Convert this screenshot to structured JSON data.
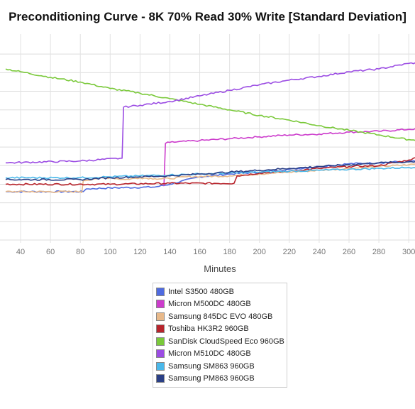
{
  "chart_data": {
    "type": "line",
    "title": "Preconditioning Curve - 8K 70% Read 30% Write [Standard Deviation]",
    "xlabel": "Minutes",
    "ylabel": "",
    "x_ticks": [
      40,
      60,
      80,
      100,
      120,
      140,
      160,
      180,
      200,
      220,
      240,
      260,
      280,
      300
    ],
    "xlim": [
      30,
      308
    ],
    "y_grid_levels": [
      10,
      9,
      8,
      7,
      6,
      5,
      4,
      3,
      2,
      1,
      0
    ],
    "ylim": [
      0,
      11
    ],
    "grid": true,
    "legend_position": "bottom",
    "series": [
      {
        "name": "Intel S3500 480GB",
        "color": "#4f6be0",
        "points": [
          [
            30,
            2.6
          ],
          [
            82,
            2.6
          ],
          [
            84,
            2.75
          ],
          [
            100,
            2.8
          ],
          [
            130,
            2.85
          ],
          [
            140,
            3.0
          ],
          [
            160,
            3.4
          ],
          [
            180,
            3.55
          ],
          [
            200,
            3.65
          ],
          [
            220,
            3.8
          ],
          [
            240,
            3.95
          ],
          [
            260,
            4.1
          ],
          [
            280,
            4.15
          ],
          [
            300,
            4.25
          ],
          [
            308,
            4.2
          ]
        ]
      },
      {
        "name": "Micron M500DC 480GB",
        "color": "#cc3ccc",
        "points": [
          [
            136,
            2.9
          ],
          [
            137,
            5.2
          ],
          [
            140,
            5.25
          ],
          [
            160,
            5.35
          ],
          [
            180,
            5.45
          ],
          [
            200,
            5.55
          ],
          [
            220,
            5.65
          ],
          [
            240,
            5.7
          ],
          [
            260,
            5.8
          ],
          [
            280,
            5.85
          ],
          [
            300,
            5.95
          ],
          [
            308,
            6.0
          ]
        ]
      },
      {
        "name": "Samsung 845DC EVO 480GB",
        "color": "#e8b98a",
        "points": [
          [
            30,
            2.6
          ],
          [
            80,
            2.6
          ],
          [
            81,
            2.55
          ],
          [
            82,
            3.2
          ],
          [
            90,
            3.3
          ],
          [
            100,
            3.35
          ],
          [
            110,
            3.25
          ],
          [
            120,
            3.35
          ],
          [
            130,
            3.3
          ],
          [
            140,
            3.3
          ],
          [
            150,
            3.4
          ],
          [
            180,
            3.45
          ],
          [
            200,
            3.55
          ],
          [
            220,
            3.65
          ],
          [
            240,
            3.75
          ],
          [
            260,
            3.85
          ],
          [
            280,
            3.95
          ],
          [
            300,
            4.05
          ],
          [
            308,
            4.1
          ]
        ]
      },
      {
        "name": "Toshiba HK3R2 960GB",
        "color": "#b8242c",
        "points": [
          [
            30,
            3.0
          ],
          [
            100,
            3.0
          ],
          [
            140,
            3.05
          ],
          [
            183,
            3.05
          ],
          [
            185,
            3.45
          ],
          [
            200,
            3.6
          ],
          [
            220,
            3.7
          ],
          [
            240,
            3.85
          ],
          [
            260,
            3.95
          ],
          [
            280,
            4.0
          ],
          [
            300,
            4.3
          ],
          [
            308,
            4.5
          ]
        ]
      },
      {
        "name": "SanDisk CloudSpeed Eco 960GB",
        "color": "#7ac93a",
        "points": [
          [
            30,
            9.2
          ],
          [
            40,
            9.05
          ],
          [
            60,
            8.75
          ],
          [
            80,
            8.5
          ],
          [
            100,
            8.15
          ],
          [
            120,
            7.9
          ],
          [
            140,
            7.6
          ],
          [
            160,
            7.3
          ],
          [
            180,
            7.0
          ],
          [
            200,
            6.7
          ],
          [
            220,
            6.45
          ],
          [
            240,
            6.15
          ],
          [
            260,
            5.9
          ],
          [
            280,
            5.65
          ],
          [
            300,
            5.4
          ],
          [
            308,
            5.35
          ]
        ]
      },
      {
        "name": "Micron M510DC 480GB",
        "color": "#9b4ce3",
        "points": [
          [
            30,
            4.15
          ],
          [
            80,
            4.25
          ],
          [
            108,
            4.4
          ],
          [
            109,
            7.15
          ],
          [
            120,
            7.25
          ],
          [
            140,
            7.45
          ],
          [
            160,
            7.75
          ],
          [
            180,
            8.05
          ],
          [
            200,
            8.35
          ],
          [
            220,
            8.6
          ],
          [
            240,
            8.8
          ],
          [
            260,
            9.05
          ],
          [
            280,
            9.2
          ],
          [
            300,
            9.5
          ],
          [
            308,
            9.55
          ]
        ]
      },
      {
        "name": "Samsung SM863 960GB",
        "color": "#4ab8ea",
        "points": [
          [
            30,
            3.35
          ],
          [
            80,
            3.35
          ],
          [
            100,
            3.4
          ],
          [
            120,
            3.45
          ],
          [
            140,
            3.5
          ],
          [
            160,
            3.55
          ],
          [
            180,
            3.6
          ],
          [
            200,
            3.65
          ],
          [
            220,
            3.7
          ],
          [
            240,
            3.75
          ],
          [
            260,
            3.8
          ],
          [
            280,
            3.85
          ],
          [
            300,
            3.9
          ],
          [
            308,
            3.95
          ]
        ]
      },
      {
        "name": "Samsung PM863 960GB",
        "color": "#2a3f86",
        "points": [
          [
            30,
            3.25
          ],
          [
            80,
            3.25
          ],
          [
            100,
            3.35
          ],
          [
            120,
            3.4
          ],
          [
            140,
            3.45
          ],
          [
            160,
            3.55
          ],
          [
            180,
            3.65
          ],
          [
            200,
            3.75
          ],
          [
            220,
            3.85
          ],
          [
            240,
            3.95
          ],
          [
            260,
            4.05
          ],
          [
            280,
            4.15
          ],
          [
            300,
            4.2
          ],
          [
            308,
            4.25
          ]
        ]
      }
    ]
  }
}
